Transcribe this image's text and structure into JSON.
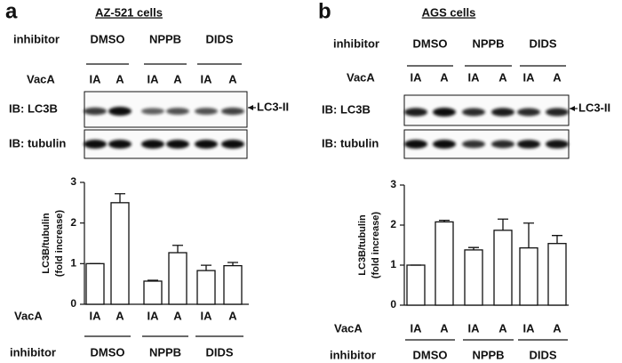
{
  "panels": [
    {
      "letter": "a",
      "title": "AZ-521 cells",
      "row_labels": [
        "inhibitor",
        "VacA"
      ],
      "blot_labels": [
        "IB: LC3B",
        "IB: tubulin"
      ],
      "band_label": "LC3-II"
    },
    {
      "letter": "b",
      "title": "AGS cells",
      "row_labels": [
        "inhibitor",
        "VacA"
      ],
      "blot_labels": [
        "IB: LC3B",
        "IB: tubulin"
      ],
      "band_label": "LC3-II"
    }
  ],
  "chart_data": [
    {
      "type": "bar",
      "ylabel": [
        "LC3B/tubulin",
        "(fold increase)"
      ],
      "category_label": "VacA",
      "group_label": "inhibitor",
      "categories": [
        "IA",
        "A",
        "IA",
        "A",
        "IA",
        "A"
      ],
      "groups": [
        "DMSO",
        "NPPB",
        "DIDS"
      ],
      "values": [
        1.0,
        2.5,
        0.57,
        1.27,
        0.83,
        0.95
      ],
      "errors": [
        0,
        0.22,
        0.02,
        0.18,
        0.13,
        0.08
      ],
      "color": "#ffffff",
      "ylim": [
        0,
        3
      ],
      "yticks": [
        0,
        1,
        2,
        3
      ]
    },
    {
      "type": "bar",
      "ylabel": [
        "LC3B/tubulin",
        "(fold increase)"
      ],
      "category_label": "VacA",
      "group_label": "inhibitor",
      "categories": [
        "IA",
        "A",
        "IA",
        "A",
        "IA",
        "A"
      ],
      "groups": [
        "DMSO",
        "NPPB",
        "DIDS"
      ],
      "values": [
        1.0,
        2.08,
        1.38,
        1.87,
        1.43,
        1.54
      ],
      "errors": [
        0,
        0.04,
        0.06,
        0.28,
        0.62,
        0.2
      ],
      "color": "#ffffff",
      "ylim": [
        0,
        3
      ],
      "yticks": [
        0,
        1,
        2,
        3
      ]
    }
  ]
}
